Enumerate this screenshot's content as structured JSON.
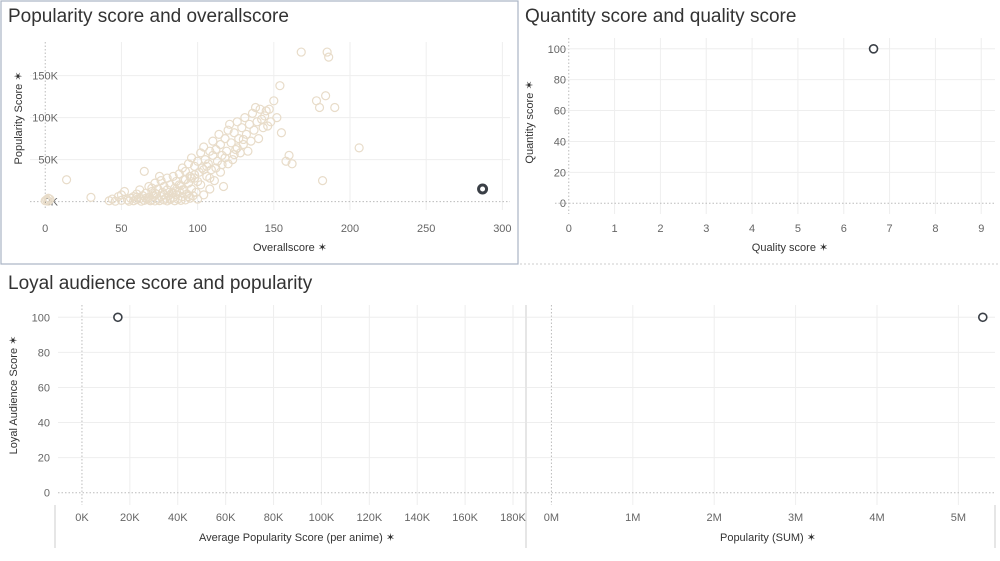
{
  "colors": {
    "point_light": "#e8dcc9",
    "point_dark": "#3a3f46",
    "grid": "#eeeeee",
    "zero_line": "#bbbbbb",
    "border": "#a9b4c4",
    "divider": "#cccccc"
  },
  "chart_data": [
    {
      "type": "scatter",
      "title": "Popularity score and overallscore",
      "xlabel": "Overallscore",
      "ylabel": "Popularity Score",
      "xlim": [
        -10,
        305
      ],
      "ylim": [
        -10000,
        190000
      ],
      "x_ticks": [
        0,
        50,
        100,
        150,
        200,
        250,
        300
      ],
      "x_tick_labels": [
        "0",
        "50",
        "100",
        "150",
        "200",
        "250",
        "300"
      ],
      "y_ticks": [
        0,
        50000,
        100000,
        150000
      ],
      "y_tick_labels": [
        "0K",
        "50K",
        "100K",
        "150K"
      ],
      "series": [
        {
          "points": [
            [
              0,
              1000
            ],
            [
              1,
              2500
            ],
            [
              2,
              4000
            ],
            [
              3,
              3000
            ],
            [
              2,
              500
            ],
            [
              1,
              1500
            ],
            [
              14,
              26000
            ],
            [
              30,
              5000
            ],
            [
              42,
              1000
            ],
            [
              44,
              3000
            ],
            [
              46,
              500
            ],
            [
              48,
              6000
            ],
            [
              50,
              8000
            ],
            [
              50,
              1500
            ],
            [
              52,
              12000
            ],
            [
              54,
              2000
            ],
            [
              55,
              500
            ],
            [
              56,
              4000
            ],
            [
              58,
              6000
            ],
            [
              58,
              1000
            ],
            [
              60,
              9000
            ],
            [
              60,
              2500
            ],
            [
              62,
              14000
            ],
            [
              62,
              3500
            ],
            [
              63,
              500
            ],
            [
              64,
              7000
            ],
            [
              65,
              1500
            ],
            [
              65,
              36000
            ],
            [
              66,
              10000
            ],
            [
              67,
              3000
            ],
            [
              68,
              18000
            ],
            [
              68,
              5000
            ],
            [
              69,
              1000
            ],
            [
              70,
              12000
            ],
            [
              70,
              2000
            ],
            [
              71,
              6000
            ],
            [
              72,
              22000
            ],
            [
              72,
              800
            ],
            [
              73,
              9000
            ],
            [
              74,
              3000
            ],
            [
              74,
              15000
            ],
            [
              75,
              1200
            ],
            [
              76,
              25000
            ],
            [
              76,
              6000
            ],
            [
              77,
              11000
            ],
            [
              78,
              2000
            ],
            [
              78,
              18000
            ],
            [
              79,
              4000
            ],
            [
              80,
              28000
            ],
            [
              80,
              800
            ],
            [
              80,
              14000
            ],
            [
              81,
              7000
            ],
            [
              82,
              20000
            ],
            [
              82,
              2500
            ],
            [
              83,
              10000
            ],
            [
              84,
              30000
            ],
            [
              84,
              5000
            ],
            [
              85,
              16000
            ],
            [
              85,
              1000
            ],
            [
              86,
              24000
            ],
            [
              86,
              8000
            ],
            [
              87,
              3000
            ],
            [
              88,
              33000
            ],
            [
              88,
              12000
            ],
            [
              89,
              19000
            ],
            [
              89,
              1500
            ],
            [
              90,
              40000
            ],
            [
              90,
              6000
            ],
            [
              91,
              26000
            ],
            [
              91,
              14000
            ],
            [
              92,
              2000
            ],
            [
              92,
              36000
            ],
            [
              93,
              9000
            ],
            [
              94,
              45000
            ],
            [
              94,
              22000
            ],
            [
              95,
              4000
            ],
            [
              95,
              30000
            ],
            [
              96,
              15000
            ],
            [
              96,
              52000
            ],
            [
              97,
              7000
            ],
            [
              98,
              28000
            ],
            [
              98,
              42000
            ],
            [
              99,
              11000
            ],
            [
              100,
              48000
            ],
            [
              100,
              3000
            ],
            [
              101,
              35000
            ],
            [
              102,
              58000
            ],
            [
              102,
              20000
            ],
            [
              103,
              40000
            ],
            [
              104,
              8000
            ],
            [
              104,
              65000
            ],
            [
              105,
              50000
            ],
            [
              106,
              30000
            ],
            [
              107,
              45000
            ],
            [
              108,
              60000
            ],
            [
              108,
              15000
            ],
            [
              109,
              38000
            ],
            [
              110,
              55000
            ],
            [
              110,
              72000
            ],
            [
              111,
              25000
            ],
            [
              112,
              62000
            ],
            [
              113,
              48000
            ],
            [
              114,
              80000
            ],
            [
              115,
              35000
            ],
            [
              115,
              68000
            ],
            [
              116,
              55000
            ],
            [
              117,
              18000
            ],
            [
              118,
              75000
            ],
            [
              119,
              60000
            ],
            [
              120,
              85000
            ],
            [
              120,
              45000
            ],
            [
              121,
              92000
            ],
            [
              122,
              70000
            ],
            [
              123,
              50000
            ],
            [
              124,
              82000
            ],
            [
              125,
              62000
            ],
            [
              126,
              95000
            ],
            [
              127,
              75000
            ],
            [
              128,
              58000
            ],
            [
              129,
              88000
            ],
            [
              130,
              68000
            ],
            [
              131,
              100000
            ],
            [
              132,
              80000
            ],
            [
              133,
              60000
            ],
            [
              134,
              92000
            ],
            [
              135,
              72000
            ],
            [
              136,
              105000
            ],
            [
              137,
              85000
            ],
            [
              138,
              112000
            ],
            [
              139,
              95000
            ],
            [
              140,
              75000
            ],
            [
              141,
              110000
            ],
            [
              142,
              98000
            ],
            [
              143,
              88000
            ],
            [
              144,
              102000
            ],
            [
              145,
              108000
            ],
            [
              146,
              90000
            ],
            [
              147,
              110000
            ],
            [
              148,
              95000
            ],
            [
              150,
              120000
            ],
            [
              152,
              100000
            ],
            [
              154,
              138000
            ],
            [
              155,
              82000
            ],
            [
              158,
              48000
            ],
            [
              160,
              55000
            ],
            [
              162,
              45000
            ],
            [
              168,
              178000
            ],
            [
              178,
              120000
            ],
            [
              180,
              112000
            ],
            [
              182,
              25000
            ],
            [
              184,
              126000
            ],
            [
              185,
              178000
            ],
            [
              186,
              172000
            ],
            [
              190,
              112000
            ],
            [
              206,
              64000
            ],
            [
              84,
              10000
            ],
            [
              75,
              30000
            ],
            [
              88,
              20000
            ],
            [
              92,
              26000
            ],
            [
              96,
              28000
            ],
            [
              78,
              8000
            ],
            [
              70,
              16000
            ],
            [
              66,
              4000
            ],
            [
              60,
              5000
            ],
            [
              86,
              12000
            ],
            [
              90,
              14000
            ],
            [
              94,
              6000
            ],
            [
              100,
              24000
            ],
            [
              98,
              32000
            ],
            [
              72,
              10000
            ],
            [
              82,
              4000
            ],
            [
              104,
              38000
            ],
            [
              106,
              42000
            ],
            [
              108,
              28000
            ],
            [
              112,
              40000
            ],
            [
              116,
              44000
            ],
            [
              118,
              52000
            ],
            [
              124,
              56000
            ],
            [
              126,
              64000
            ],
            [
              130,
              74000
            ]
          ]
        },
        {
          "points": [
            [
              287,
              15000
            ]
          ]
        }
      ]
    },
    {
      "type": "scatter",
      "title": "Quantity score and quality score",
      "xlabel": "Quality score",
      "ylabel": "Quantity score",
      "xlim": [
        -0.3,
        9.3
      ],
      "ylim": [
        -7,
        107
      ],
      "x_ticks": [
        0,
        1,
        2,
        3,
        4,
        5,
        6,
        7,
        8,
        9
      ],
      "x_tick_labels": [
        "0",
        "1",
        "2",
        "3",
        "4",
        "5",
        "6",
        "7",
        "8",
        "9"
      ],
      "y_ticks": [
        0,
        20,
        40,
        60,
        80,
        100
      ],
      "y_tick_labels": [
        "0",
        "20",
        "40",
        "60",
        "80",
        "100"
      ],
      "series": [
        {
          "points": [
            [
              6.65,
              100
            ]
          ]
        }
      ]
    },
    {
      "type": "scatter",
      "title": "Loyal audience score and popularity",
      "xlabel": "Average Popularity Score (per anime)",
      "ylabel": "Loyal Audience Score",
      "xlim": [
        -10000,
        185000
      ],
      "ylim": [
        -7,
        107
      ],
      "x_ticks": [
        0,
        20000,
        40000,
        60000,
        80000,
        100000,
        120000,
        140000,
        160000,
        180000
      ],
      "x_tick_labels": [
        "0K",
        "20K",
        "40K",
        "60K",
        "80K",
        "100K",
        "120K",
        "140K",
        "160K",
        "180K"
      ],
      "y_ticks": [
        0,
        20,
        40,
        60,
        80,
        100
      ],
      "y_tick_labels": [
        "0",
        "20",
        "40",
        "60",
        "80",
        "100"
      ],
      "series": [
        {
          "points": [
            [
              15000,
              100
            ]
          ]
        }
      ]
    },
    {
      "type": "scatter",
      "title": "",
      "xlabel": "Popularity (SUM)",
      "ylabel": "",
      "xlim": [
        -300000,
        5450000
      ],
      "ylim": [
        -7,
        107
      ],
      "x_ticks": [
        0,
        1000000,
        2000000,
        3000000,
        4000000,
        5000000
      ],
      "x_tick_labels": [
        "0M",
        "1M",
        "2M",
        "3M",
        "4M",
        "5M"
      ],
      "y_ticks": [
        0,
        20,
        40,
        60,
        80,
        100
      ],
      "y_tick_labels": [],
      "series": [
        {
          "points": [
            [
              5300000,
              100
            ]
          ]
        }
      ]
    }
  ]
}
